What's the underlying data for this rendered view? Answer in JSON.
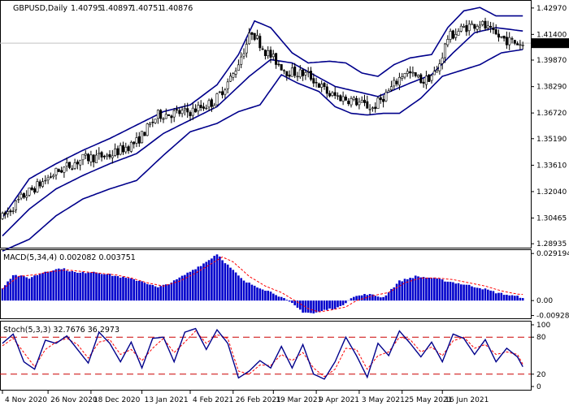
{
  "chart_data": {
    "type": "candlestick",
    "colors": {
      "background": "#ffffff",
      "candle": "#000000",
      "bollinger": "#00008b",
      "macd_histogram": "#0000cc",
      "macd_signal": "#ff0000",
      "stoch_main": "#00008b",
      "stoch_signal": "#ff0000",
      "stoch_levels": "#cc0000",
      "price_label_bg": "#000000",
      "price_label_fg": "#ffffff"
    },
    "price_panel": {
      "title": "GBPUSD,Daily",
      "ohlc": [
        "1.40795",
        "1.40897",
        "1.40751",
        "1.40876"
      ],
      "current_price": "1.40876",
      "current_value": 1.40876,
      "ylim": [
        1.2875,
        1.4335
      ],
      "ytick_labels": [
        "1.42970",
        "1.41400",
        "1.39870",
        "1.38290",
        "1.36720",
        "1.35190",
        "1.33610",
        "1.32040",
        "1.30465",
        "1.28935"
      ],
      "ytick_values": [
        1.4297,
        1.414,
        1.3987,
        1.3829,
        1.3672,
        1.3519,
        1.3361,
        1.3204,
        1.30465,
        1.28935
      ],
      "anchors": [
        [
          0,
          1.305
        ],
        [
          8,
          1.318
        ],
        [
          20,
          1.332
        ],
        [
          30,
          1.34
        ],
        [
          40,
          1.342
        ],
        [
          50,
          1.35
        ],
        [
          58,
          1.366
        ],
        [
          70,
          1.368
        ],
        [
          79,
          1.374
        ],
        [
          86,
          1.39
        ],
        [
          93,
          1.416
        ],
        [
          98,
          1.404
        ],
        [
          106,
          1.392
        ],
        [
          114,
          1.39
        ],
        [
          122,
          1.378
        ],
        [
          130,
          1.375
        ],
        [
          138,
          1.37
        ],
        [
          144,
          1.38
        ],
        [
          150,
          1.392
        ],
        [
          157,
          1.386
        ],
        [
          162,
          1.392
        ],
        [
          166,
          1.412
        ],
        [
          172,
          1.418
        ],
        [
          178,
          1.421
        ],
        [
          183,
          1.414
        ],
        [
          189,
          1.41
        ],
        [
          194,
          1.408
        ]
      ],
      "bollinger": {
        "period": 20,
        "middle_anchors": [
          [
            0,
            1.294
          ],
          [
            10,
            1.31
          ],
          [
            20,
            1.322
          ],
          [
            30,
            1.33
          ],
          [
            40,
            1.337
          ],
          [
            50,
            1.343
          ],
          [
            60,
            1.355
          ],
          [
            70,
            1.363
          ],
          [
            80,
            1.371
          ],
          [
            92,
            1.389
          ],
          [
            100,
            1.399
          ],
          [
            108,
            1.397
          ],
          [
            116,
            1.39
          ],
          [
            124,
            1.383
          ],
          [
            132,
            1.38
          ],
          [
            140,
            1.377
          ],
          [
            146,
            1.381
          ],
          [
            152,
            1.385
          ],
          [
            160,
            1.39
          ],
          [
            168,
            1.403
          ],
          [
            176,
            1.415
          ],
          [
            184,
            1.418
          ],
          [
            194,
            1.416
          ]
        ],
        "upper_anchors": [
          [
            0,
            1.305
          ],
          [
            10,
            1.328
          ],
          [
            20,
            1.337
          ],
          [
            30,
            1.345
          ],
          [
            40,
            1.352
          ],
          [
            50,
            1.36
          ],
          [
            60,
            1.368
          ],
          [
            70,
            1.372
          ],
          [
            80,
            1.384
          ],
          [
            88,
            1.402
          ],
          [
            94,
            1.422
          ],
          [
            100,
            1.418
          ],
          [
            108,
            1.403
          ],
          [
            114,
            1.397
          ],
          [
            122,
            1.398
          ],
          [
            128,
            1.397
          ],
          [
            134,
            1.391
          ],
          [
            140,
            1.389
          ],
          [
            146,
            1.396
          ],
          [
            152,
            1.4
          ],
          [
            160,
            1.402
          ],
          [
            166,
            1.418
          ],
          [
            172,
            1.428
          ],
          [
            178,
            1.43
          ],
          [
            184,
            1.425
          ],
          [
            194,
            1.425
          ]
        ],
        "lower_anchors": [
          [
            0,
            1.285
          ],
          [
            10,
            1.292
          ],
          [
            20,
            1.306
          ],
          [
            30,
            1.316
          ],
          [
            40,
            1.322
          ],
          [
            50,
            1.327
          ],
          [
            60,
            1.342
          ],
          [
            70,
            1.356
          ],
          [
            80,
            1.361
          ],
          [
            88,
            1.368
          ],
          [
            96,
            1.372
          ],
          [
            104,
            1.39
          ],
          [
            110,
            1.385
          ],
          [
            118,
            1.38
          ],
          [
            124,
            1.371
          ],
          [
            130,
            1.367
          ],
          [
            136,
            1.366
          ],
          [
            142,
            1.367
          ],
          [
            148,
            1.367
          ],
          [
            156,
            1.376
          ],
          [
            164,
            1.389
          ],
          [
            170,
            1.392
          ],
          [
            178,
            1.396
          ],
          [
            186,
            1.403
          ],
          [
            194,
            1.405
          ]
        ]
      }
    },
    "x_axis": {
      "date_labels": [
        "4 Nov 2020",
        "26 Nov 2020",
        "18 Dec 2020",
        "13 Jan 2021",
        "4 Feb 2021",
        "26 Feb 2021",
        "19 Mar 2021",
        "9 Apr 2021",
        "3 May 2021",
        "25 May 2021",
        "16 Jun 2021"
      ],
      "date_label_bar_index": [
        0,
        17,
        33,
        52,
        70,
        86,
        101,
        117,
        133,
        149,
        164
      ]
    },
    "macd_panel": {
      "title": "MACD(5,34,4) 0.002082 0.003751",
      "ylim": [
        -0.0105,
        0.0308
      ],
      "ytick_labels": [
        "0.029194",
        "0.00",
        "-0.009284"
      ],
      "ytick_values": [
        0.029194,
        0.0,
        -0.009284
      ],
      "histogram_anchors": [
        [
          0,
          0.008
        ],
        [
          4,
          0.016
        ],
        [
          10,
          0.014
        ],
        [
          16,
          0.018
        ],
        [
          22,
          0.02
        ],
        [
          28,
          0.017
        ],
        [
          34,
          0.018
        ],
        [
          40,
          0.016
        ],
        [
          46,
          0.014
        ],
        [
          52,
          0.012
        ],
        [
          58,
          0.008
        ],
        [
          64,
          0.012
        ],
        [
          70,
          0.018
        ],
        [
          76,
          0.024
        ],
        [
          80,
          0.029
        ],
        [
          84,
          0.022
        ],
        [
          90,
          0.012
        ],
        [
          96,
          0.008
        ],
        [
          102,
          0.004
        ],
        [
          108,
          -0.002
        ],
        [
          112,
          -0.007
        ],
        [
          116,
          -0.008
        ],
        [
          120,
          -0.006
        ],
        [
          126,
          -0.004
        ],
        [
          130,
          0.002
        ],
        [
          136,
          0.004
        ],
        [
          142,
          0.002
        ],
        [
          148,
          0.012
        ],
        [
          154,
          0.015
        ],
        [
          160,
          0.014
        ],
        [
          166,
          0.012
        ],
        [
          172,
          0.01
        ],
        [
          178,
          0.008
        ],
        [
          184,
          0.005
        ],
        [
          190,
          0.003
        ],
        [
          194,
          0.002
        ]
      ],
      "signal_anchors": [
        [
          0,
          0.007
        ],
        [
          6,
          0.015
        ],
        [
          12,
          0.016
        ],
        [
          18,
          0.018
        ],
        [
          24,
          0.019
        ],
        [
          30,
          0.018
        ],
        [
          36,
          0.017
        ],
        [
          42,
          0.016
        ],
        [
          48,
          0.014
        ],
        [
          54,
          0.011
        ],
        [
          60,
          0.009
        ],
        [
          66,
          0.012
        ],
        [
          72,
          0.017
        ],
        [
          78,
          0.023
        ],
        [
          82,
          0.027
        ],
        [
          86,
          0.024
        ],
        [
          92,
          0.015
        ],
        [
          98,
          0.009
        ],
        [
          104,
          0.005
        ],
        [
          110,
          -0.001
        ],
        [
          114,
          -0.005
        ],
        [
          118,
          -0.007
        ],
        [
          122,
          -0.006
        ],
        [
          128,
          -0.004
        ],
        [
          132,
          0.0
        ],
        [
          138,
          0.003
        ],
        [
          144,
          0.005
        ],
        [
          150,
          0.011
        ],
        [
          156,
          0.014
        ],
        [
          162,
          0.014
        ],
        [
          168,
          0.013
        ],
        [
          174,
          0.011
        ],
        [
          180,
          0.009
        ],
        [
          186,
          0.006
        ],
        [
          192,
          0.004
        ],
        [
          194,
          0.0038
        ]
      ]
    },
    "stoch_panel": {
      "title": "Stoch(5,3,3) 32.7676 36.2973",
      "ylim": [
        0,
        100
      ],
      "ytick_labels": [
        "100",
        "80",
        "20",
        "0"
      ],
      "ytick_values": [
        100,
        80,
        20,
        0
      ],
      "level_lines": [
        80,
        20
      ],
      "main_anchors": [
        [
          0,
          70
        ],
        [
          4,
          85
        ],
        [
          8,
          40
        ],
        [
          12,
          28
        ],
        [
          16,
          75
        ],
        [
          20,
          70
        ],
        [
          24,
          82
        ],
        [
          28,
          60
        ],
        [
          32,
          38
        ],
        [
          36,
          88
        ],
        [
          40,
          70
        ],
        [
          44,
          40
        ],
        [
          48,
          72
        ],
        [
          52,
          30
        ],
        [
          56,
          78
        ],
        [
          60,
          80
        ],
        [
          64,
          40
        ],
        [
          68,
          88
        ],
        [
          72,
          94
        ],
        [
          76,
          60
        ],
        [
          80,
          92
        ],
        [
          84,
          70
        ],
        [
          88,
          14
        ],
        [
          92,
          25
        ],
        [
          96,
          42
        ],
        [
          100,
          30
        ],
        [
          104,
          65
        ],
        [
          108,
          30
        ],
        [
          112,
          68
        ],
        [
          116,
          20
        ],
        [
          120,
          12
        ],
        [
          124,
          40
        ],
        [
          128,
          80
        ],
        [
          132,
          50
        ],
        [
          136,
          15
        ],
        [
          140,
          70
        ],
        [
          144,
          50
        ],
        [
          148,
          90
        ],
        [
          152,
          70
        ],
        [
          156,
          48
        ],
        [
          160,
          72
        ],
        [
          164,
          40
        ],
        [
          168,
          85
        ],
        [
          172,
          78
        ],
        [
          176,
          52
        ],
        [
          180,
          76
        ],
        [
          184,
          40
        ],
        [
          188,
          62
        ],
        [
          192,
          48
        ],
        [
          194,
          32
        ]
      ],
      "signal_anchors": [
        [
          0,
          66
        ],
        [
          4,
          78
        ],
        [
          8,
          55
        ],
        [
          12,
          32
        ],
        [
          16,
          60
        ],
        [
          20,
          72
        ],
        [
          24,
          78
        ],
        [
          28,
          68
        ],
        [
          32,
          46
        ],
        [
          36,
          72
        ],
        [
          40,
          76
        ],
        [
          44,
          52
        ],
        [
          48,
          60
        ],
        [
          52,
          42
        ],
        [
          56,
          62
        ],
        [
          60,
          78
        ],
        [
          64,
          55
        ],
        [
          68,
          72
        ],
        [
          72,
          90
        ],
        [
          76,
          70
        ],
        [
          80,
          84
        ],
        [
          84,
          78
        ],
        [
          88,
          25
        ],
        [
          92,
          20
        ],
        [
          96,
          35
        ],
        [
          100,
          34
        ],
        [
          104,
          52
        ],
        [
          108,
          42
        ],
        [
          112,
          55
        ],
        [
          116,
          30
        ],
        [
          120,
          16
        ],
        [
          124,
          28
        ],
        [
          128,
          62
        ],
        [
          132,
          60
        ],
        [
          136,
          28
        ],
        [
          140,
          50
        ],
        [
          144,
          56
        ],
        [
          148,
          80
        ],
        [
          152,
          76
        ],
        [
          156,
          56
        ],
        [
          160,
          64
        ],
        [
          164,
          50
        ],
        [
          168,
          74
        ],
        [
          172,
          80
        ],
        [
          176,
          62
        ],
        [
          180,
          68
        ],
        [
          184,
          52
        ],
        [
          188,
          56
        ],
        [
          192,
          52
        ],
        [
          194,
          36
        ]
      ]
    }
  }
}
